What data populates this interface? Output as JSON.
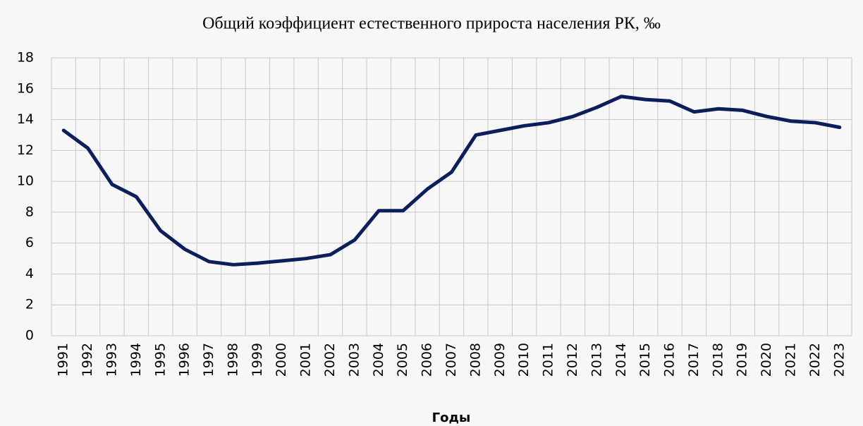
{
  "chart_data": {
    "type": "line",
    "title": "Общий коэффициент естественного прироста населения РК, ‰",
    "x_label": "Годы",
    "categories": [
      "1991",
      "1992",
      "1993",
      "1994",
      "1995",
      "1996",
      "1997",
      "1998",
      "1999",
      "2000",
      "2001",
      "2002",
      "2003",
      "2004",
      "2005",
      "2006",
      "2007",
      "2008",
      "2009",
      "2010",
      "2011",
      "2012",
      "2013",
      "2014",
      "2015",
      "2016",
      "2017",
      "2018",
      "2019",
      "2020",
      "2021",
      "2022",
      "2023"
    ],
    "values": [
      13.3,
      12.15,
      9.8,
      9.0,
      6.8,
      5.6,
      4.8,
      4.6,
      4.7,
      4.85,
      5.0,
      5.25,
      6.2,
      8.1,
      8.1,
      9.5,
      10.6,
      13.0,
      13.3,
      13.6,
      13.8,
      14.2,
      14.8,
      15.5,
      15.3,
      15.2,
      14.5,
      14.7,
      14.6,
      14.2,
      13.9,
      13.8,
      13.5
    ],
    "color": "#0c1f5c",
    "ylim": [
      0,
      18
    ],
    "yticks": [
      0,
      2,
      4,
      6,
      8,
      10,
      12,
      14,
      16,
      18
    ],
    "grid": true
  }
}
